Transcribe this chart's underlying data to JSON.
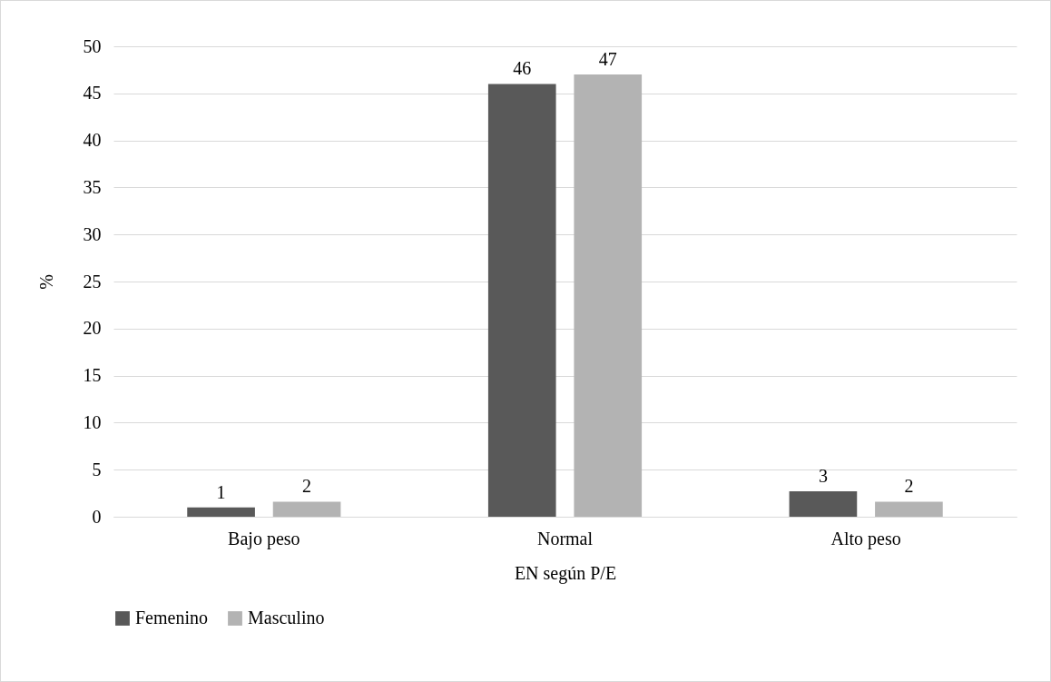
{
  "chart_data": {
    "type": "bar",
    "xlabel": "EN según P/E",
    "ylabel": "%",
    "categories": [
      "Bajo peso",
      "Normal",
      "Alto peso"
    ],
    "series": [
      {
        "name": "Femenino",
        "color": "#595959",
        "values": [
          1.0,
          46.0,
          2.7
        ],
        "value_labels": [
          "1",
          "46",
          "3"
        ]
      },
      {
        "name": "Masculino",
        "color": "#b3b3b3",
        "values": [
          1.6,
          47.0,
          1.6
        ],
        "value_labels": [
          "2",
          "47",
          "2"
        ]
      }
    ],
    "ylim": [
      0,
      50
    ],
    "yticks": [
      0,
      5,
      10,
      15,
      20,
      25,
      30,
      35,
      40,
      45,
      50
    ],
    "grid": "y",
    "legend": "bottom"
  }
}
